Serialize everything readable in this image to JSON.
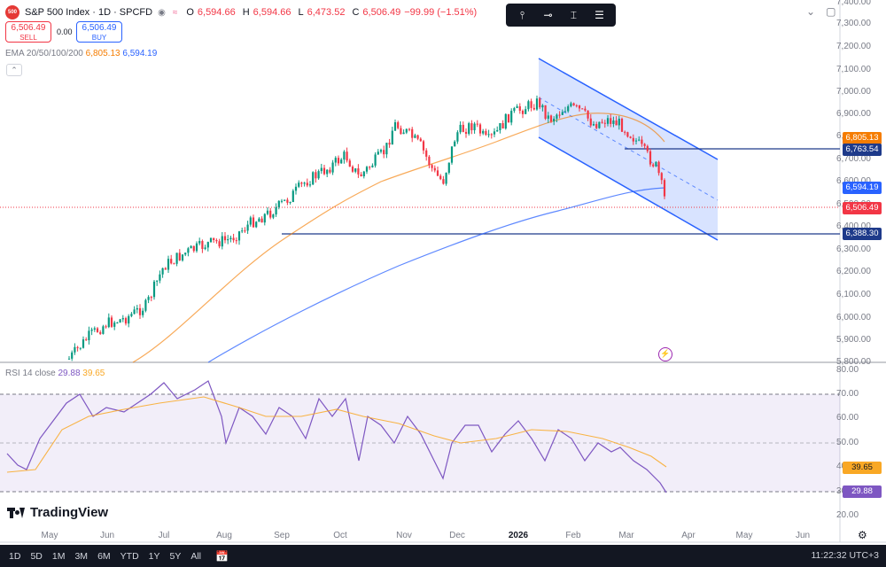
{
  "symbol": {
    "badge": "500",
    "title": "S&P 500 Index · 1D · SPCFD",
    "open_label": "O",
    "open": "6,594.66",
    "high_label": "H",
    "high": "6,594.66",
    "low_label": "L",
    "low": "6,473.52",
    "close_label": "C",
    "close": "6,506.49",
    "change": "−99.99 (−1.51%)"
  },
  "trade": {
    "sell_price": "6,506.49",
    "sell_label": "SELL",
    "spread": "0.00",
    "buy_price": "6,506.49",
    "buy_label": "BUY"
  },
  "ema": {
    "label": "EMA 20/50/100/200",
    "value1": "6,805.13",
    "value2": "6,594.19"
  },
  "rsi": {
    "label": "RSI 14 close",
    "value1": "29.88",
    "value2": "39.65"
  },
  "toolbar_icons": [
    "fib-icon",
    "line-icon",
    "measure-icon",
    "lines-icon"
  ],
  "price_axis": [
    "7,400.00",
    "7,300.00",
    "7,200.00",
    "7,100.00",
    "7,000.00",
    "6,900.00",
    "6,800.00",
    "6,700.00",
    "6,600.00",
    "6,500.00",
    "6,400.00",
    "6,300.00",
    "6,200.00",
    "6,100.00",
    "6,000.00",
    "5,900.00",
    "5,800.00"
  ],
  "price_tags": [
    {
      "label": "6,805.13",
      "color": "#f57c00"
    },
    {
      "label": "6,763.54",
      "color": "#1e3a8a"
    },
    {
      "label": "6,594.19",
      "color": "#2962ff"
    },
    {
      "label": "6,506.49",
      "color": "#f23645"
    },
    {
      "label": "6,388.30",
      "color": "#1e3a8a"
    }
  ],
  "rsi_axis": [
    "80.00",
    "70.00",
    "60.00",
    "50.00",
    "40.00",
    "30.00",
    "20.00"
  ],
  "rsi_tags": [
    {
      "label": "39.65",
      "color": "#f9a825"
    },
    {
      "label": "29.88",
      "color": "#7e57c2"
    }
  ],
  "x_axis": [
    "May",
    "Jun",
    "Jul",
    "Aug",
    "Sep",
    "Oct",
    "Nov",
    "Dec",
    "2026",
    "Feb",
    "Mar",
    "Apr",
    "May",
    "Jun"
  ],
  "logo_text": "TradingView",
  "timeframes": [
    "1D",
    "5D",
    "1M",
    "3M",
    "6M",
    "YTD",
    "1Y",
    "5Y",
    "All"
  ],
  "clock": "11:22:32 UTC+3",
  "colors": {
    "up": "#089981",
    "down": "#f23645",
    "ema_short": "#f57c00",
    "ema_long": "#2962ff",
    "channel": "#2962ff",
    "rsi": "#7e57c2",
    "rsi_ma": "#f9a825"
  },
  "chart_data": {
    "type": "candlestick",
    "x_range": [
      "Apr 2025",
      "Jun 2026"
    ],
    "y_range": [
      5800,
      7400
    ],
    "last_close": 6506.49,
    "levels": [
      6763.54,
      6388.3
    ],
    "ema": [
      {
        "period_label": "EMA 50",
        "last": 6805.13
      },
      {
        "period_label": "EMA 200",
        "last": 6594.19
      }
    ],
    "rsi": {
      "length": 14,
      "last": 29.88,
      "ma_last": 39.65,
      "range": [
        20,
        80
      ],
      "bands": [
        70,
        50,
        30
      ]
    }
  }
}
